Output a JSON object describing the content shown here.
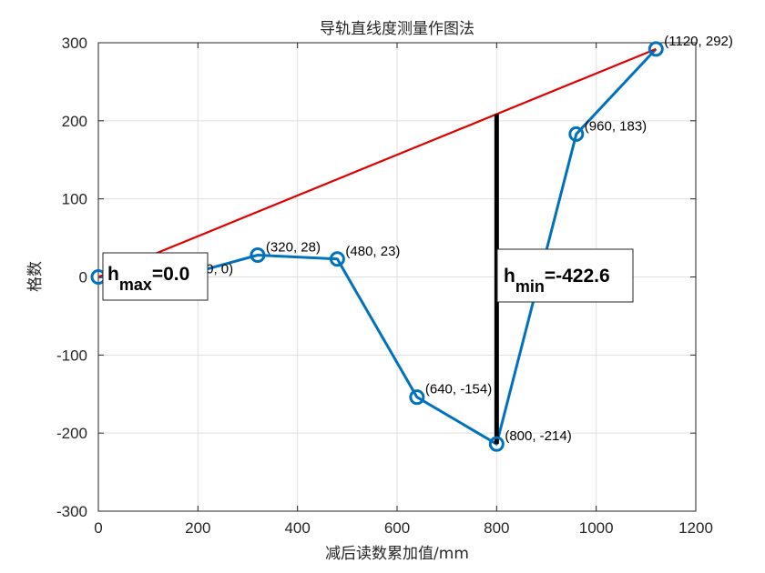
{
  "chart_data": {
    "type": "line",
    "title": "导轨直线度测量作图法",
    "xlabel": "减后读数累加值/mm",
    "ylabel": "格数",
    "xlim": [
      0,
      1200
    ],
    "ylim": [
      -300,
      300
    ],
    "xticks": [
      0,
      200,
      400,
      600,
      800,
      1000,
      1200
    ],
    "yticks": [
      -300,
      -200,
      -100,
      0,
      100,
      200,
      300
    ],
    "grid": true,
    "series": [
      {
        "x": [
          0,
          160,
          320,
          480,
          640,
          800,
          960,
          1120
        ],
        "y": [
          0,
          0,
          28,
          23,
          -154,
          -214,
          183,
          292
        ],
        "color": "#0072BD",
        "marker": "circle",
        "point_labels": [
          "(0, 0)",
          "(160, 0)",
          "(320, 28)",
          "(480, 23)",
          "(640, -154)",
          "(800, -214)",
          "(960, 183)",
          "(1120, 292)"
        ]
      }
    ],
    "reference_line": {
      "x": [
        0,
        1120
      ],
      "y": [
        0,
        292
      ],
      "color": "#E00000"
    },
    "hmin_line": {
      "x": 800,
      "y": [
        -214,
        208.6
      ],
      "color": "#000000"
    },
    "annotations": [
      {
        "main": "h",
        "sub": "max",
        "value": "=0.0"
      },
      {
        "main": "h",
        "sub": "min",
        "value": "=-422.6"
      }
    ]
  }
}
